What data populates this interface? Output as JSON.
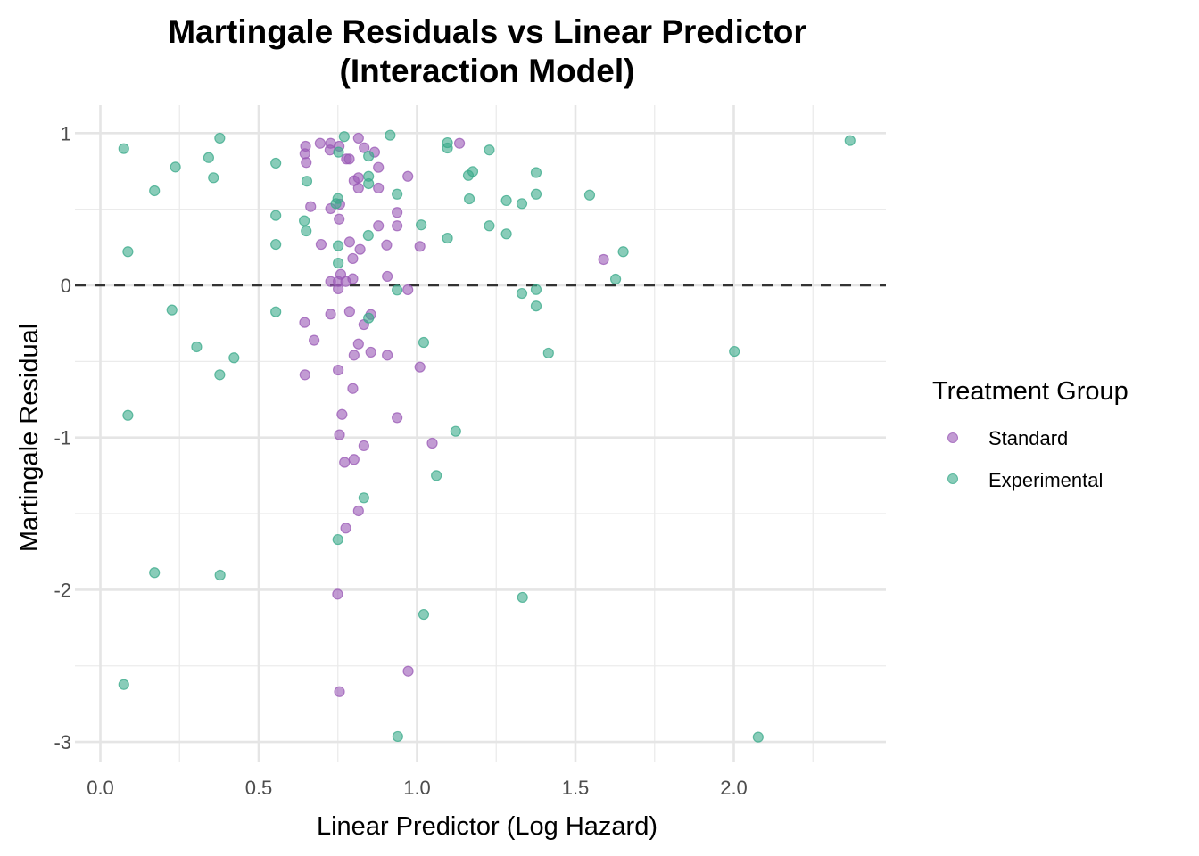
{
  "chart_data": {
    "type": "scatter",
    "title": "Martingale Residuals vs Linear Predictor",
    "subtitle": "(Interaction Model)",
    "xlabel": "Linear Predictor (Log Hazard)",
    "ylabel": "Martingale Residual",
    "xlim": [
      -0.02,
      2.48
    ],
    "ylim": [
      -3.08,
      1.18
    ],
    "x_ticks": [
      0.0,
      0.5,
      1.0,
      1.5,
      2.0
    ],
    "x_tick_labels": [
      "0.0",
      "0.5",
      "1.0",
      "1.5",
      "2.0"
    ],
    "y_ticks": [
      1,
      0,
      -1,
      -2,
      -3
    ],
    "y_tick_labels": [
      "1",
      "0",
      "-1",
      "-2",
      "-3"
    ],
    "grid": true,
    "reference_line": {
      "y": 0,
      "style": "dashed",
      "color": "#333333"
    },
    "legend": {
      "title": "Treatment Group",
      "placement": "right",
      "entries": [
        "Standard",
        "Experimental"
      ]
    },
    "series": [
      {
        "name": "Standard",
        "color": "#9a59b5",
        "points": [
          [
            0.648,
            0.914
          ],
          [
            0.646,
            0.865
          ],
          [
            0.65,
            0.807
          ],
          [
            0.694,
            0.933
          ],
          [
            0.727,
            0.933
          ],
          [
            0.725,
            0.889
          ],
          [
            0.754,
            0.914
          ],
          [
            0.815,
            0.967
          ],
          [
            0.833,
            0.904
          ],
          [
            0.866,
            0.875
          ],
          [
            0.777,
            0.83
          ],
          [
            0.786,
            0.83
          ],
          [
            0.878,
            0.775
          ],
          [
            0.971,
            0.716
          ],
          [
            0.801,
            0.687
          ],
          [
            0.815,
            0.707
          ],
          [
            0.815,
            0.639
          ],
          [
            0.878,
            0.639
          ],
          [
            0.664,
            0.517
          ],
          [
            0.727,
            0.504
          ],
          [
            0.756,
            0.533
          ],
          [
            0.754,
            0.435
          ],
          [
            0.937,
            0.479
          ],
          [
            0.878,
            0.391
          ],
          [
            0.937,
            0.391
          ],
          [
            1.134,
            0.933
          ],
          [
            0.697,
            0.269
          ],
          [
            0.787,
            0.285
          ],
          [
            0.82,
            0.236
          ],
          [
            0.797,
            0.176
          ],
          [
            0.904,
            0.265
          ],
          [
            1.009,
            0.256
          ],
          [
            0.759,
            0.072
          ],
          [
            0.727,
            0.025
          ],
          [
            0.751,
            0.025
          ],
          [
            0.775,
            0.025
          ],
          [
            0.797,
            0.043
          ],
          [
            0.751,
            -0.023
          ],
          [
            0.906,
            0.059
          ],
          [
            0.971,
            -0.029
          ],
          [
            1.589,
            0.17
          ],
          [
            0.727,
            -0.189
          ],
          [
            0.787,
            -0.172
          ],
          [
            0.854,
            -0.192
          ],
          [
            0.832,
            -0.258
          ],
          [
            0.645,
            -0.244
          ],
          [
            0.675,
            -0.361
          ],
          [
            0.815,
            -0.385
          ],
          [
            0.801,
            -0.459
          ],
          [
            0.854,
            -0.439
          ],
          [
            0.906,
            -0.459
          ],
          [
            1.009,
            -0.537
          ],
          [
            0.646,
            -0.588
          ],
          [
            0.751,
            -0.557
          ],
          [
            0.797,
            -0.678
          ],
          [
            0.763,
            -0.848
          ],
          [
            0.937,
            -0.869
          ],
          [
            0.755,
            -0.982
          ],
          [
            0.832,
            -1.054
          ],
          [
            1.048,
            -1.037
          ],
          [
            0.771,
            -1.163
          ],
          [
            0.801,
            -1.144
          ],
          [
            0.815,
            -1.482
          ],
          [
            0.775,
            -1.595
          ],
          [
            0.749,
            -2.029
          ],
          [
            0.972,
            -2.535
          ],
          [
            0.755,
            -2.67
          ]
        ]
      },
      {
        "name": "Experimental",
        "color": "#3aaa8a",
        "points": [
          [
            0.074,
            0.898
          ],
          [
            0.377,
            0.967
          ],
          [
            0.342,
            0.839
          ],
          [
            0.237,
            0.777
          ],
          [
            0.357,
            0.707
          ],
          [
            0.171,
            0.621
          ],
          [
            0.087,
            0.221
          ],
          [
            0.554,
            0.803
          ],
          [
            0.554,
            0.459
          ],
          [
            0.554,
            0.269
          ],
          [
            0.652,
            0.684
          ],
          [
            0.644,
            0.424
          ],
          [
            0.65,
            0.357
          ],
          [
            0.77,
            0.977
          ],
          [
            0.752,
            0.875
          ],
          [
            0.847,
            0.849
          ],
          [
            0.847,
            0.716
          ],
          [
            0.847,
            0.668
          ],
          [
            0.75,
            0.57
          ],
          [
            0.744,
            0.537
          ],
          [
            0.751,
            0.26
          ],
          [
            0.751,
            0.146
          ],
          [
            0.846,
            0.328
          ],
          [
            0.915,
            0.986
          ],
          [
            0.937,
            0.599
          ],
          [
            1.013,
            0.397
          ],
          [
            1.096,
            0.937
          ],
          [
            1.096,
            0.902
          ],
          [
            1.228,
            0.889
          ],
          [
            1.162,
            0.722
          ],
          [
            1.176,
            0.748
          ],
          [
            1.165,
            0.568
          ],
          [
            1.096,
            0.31
          ],
          [
            1.228,
            0.391
          ],
          [
            1.282,
            0.557
          ],
          [
            1.331,
            0.537
          ],
          [
            1.282,
            0.338
          ],
          [
            1.376,
            0.741
          ],
          [
            1.376,
            0.599
          ],
          [
            1.545,
            0.593
          ],
          [
            1.651,
            0.221
          ],
          [
            1.627,
            0.041
          ],
          [
            2.367,
            0.951
          ],
          [
            0.937,
            -0.031
          ],
          [
            1.331,
            -0.053
          ],
          [
            1.376,
            -0.028
          ],
          [
            1.376,
            -0.136
          ],
          [
            0.847,
            -0.215
          ],
          [
            0.226,
            -0.162
          ],
          [
            0.554,
            -0.174
          ],
          [
            0.304,
            -0.404
          ],
          [
            0.422,
            -0.476
          ],
          [
            0.377,
            -0.588
          ],
          [
            0.087,
            -0.854
          ],
          [
            1.021,
            -0.375
          ],
          [
            1.415,
            -0.445
          ],
          [
            2.002,
            -0.434
          ],
          [
            1.122,
            -0.959
          ],
          [
            1.061,
            -1.25
          ],
          [
            0.832,
            -1.396
          ],
          [
            0.75,
            -1.67
          ],
          [
            0.171,
            -1.888
          ],
          [
            0.378,
            -1.904
          ],
          [
            1.333,
            -2.05
          ],
          [
            1.021,
            -2.162
          ],
          [
            0.074,
            -2.623
          ],
          [
            0.939,
            -2.964
          ],
          [
            2.077,
            -2.968
          ]
        ]
      }
    ]
  }
}
